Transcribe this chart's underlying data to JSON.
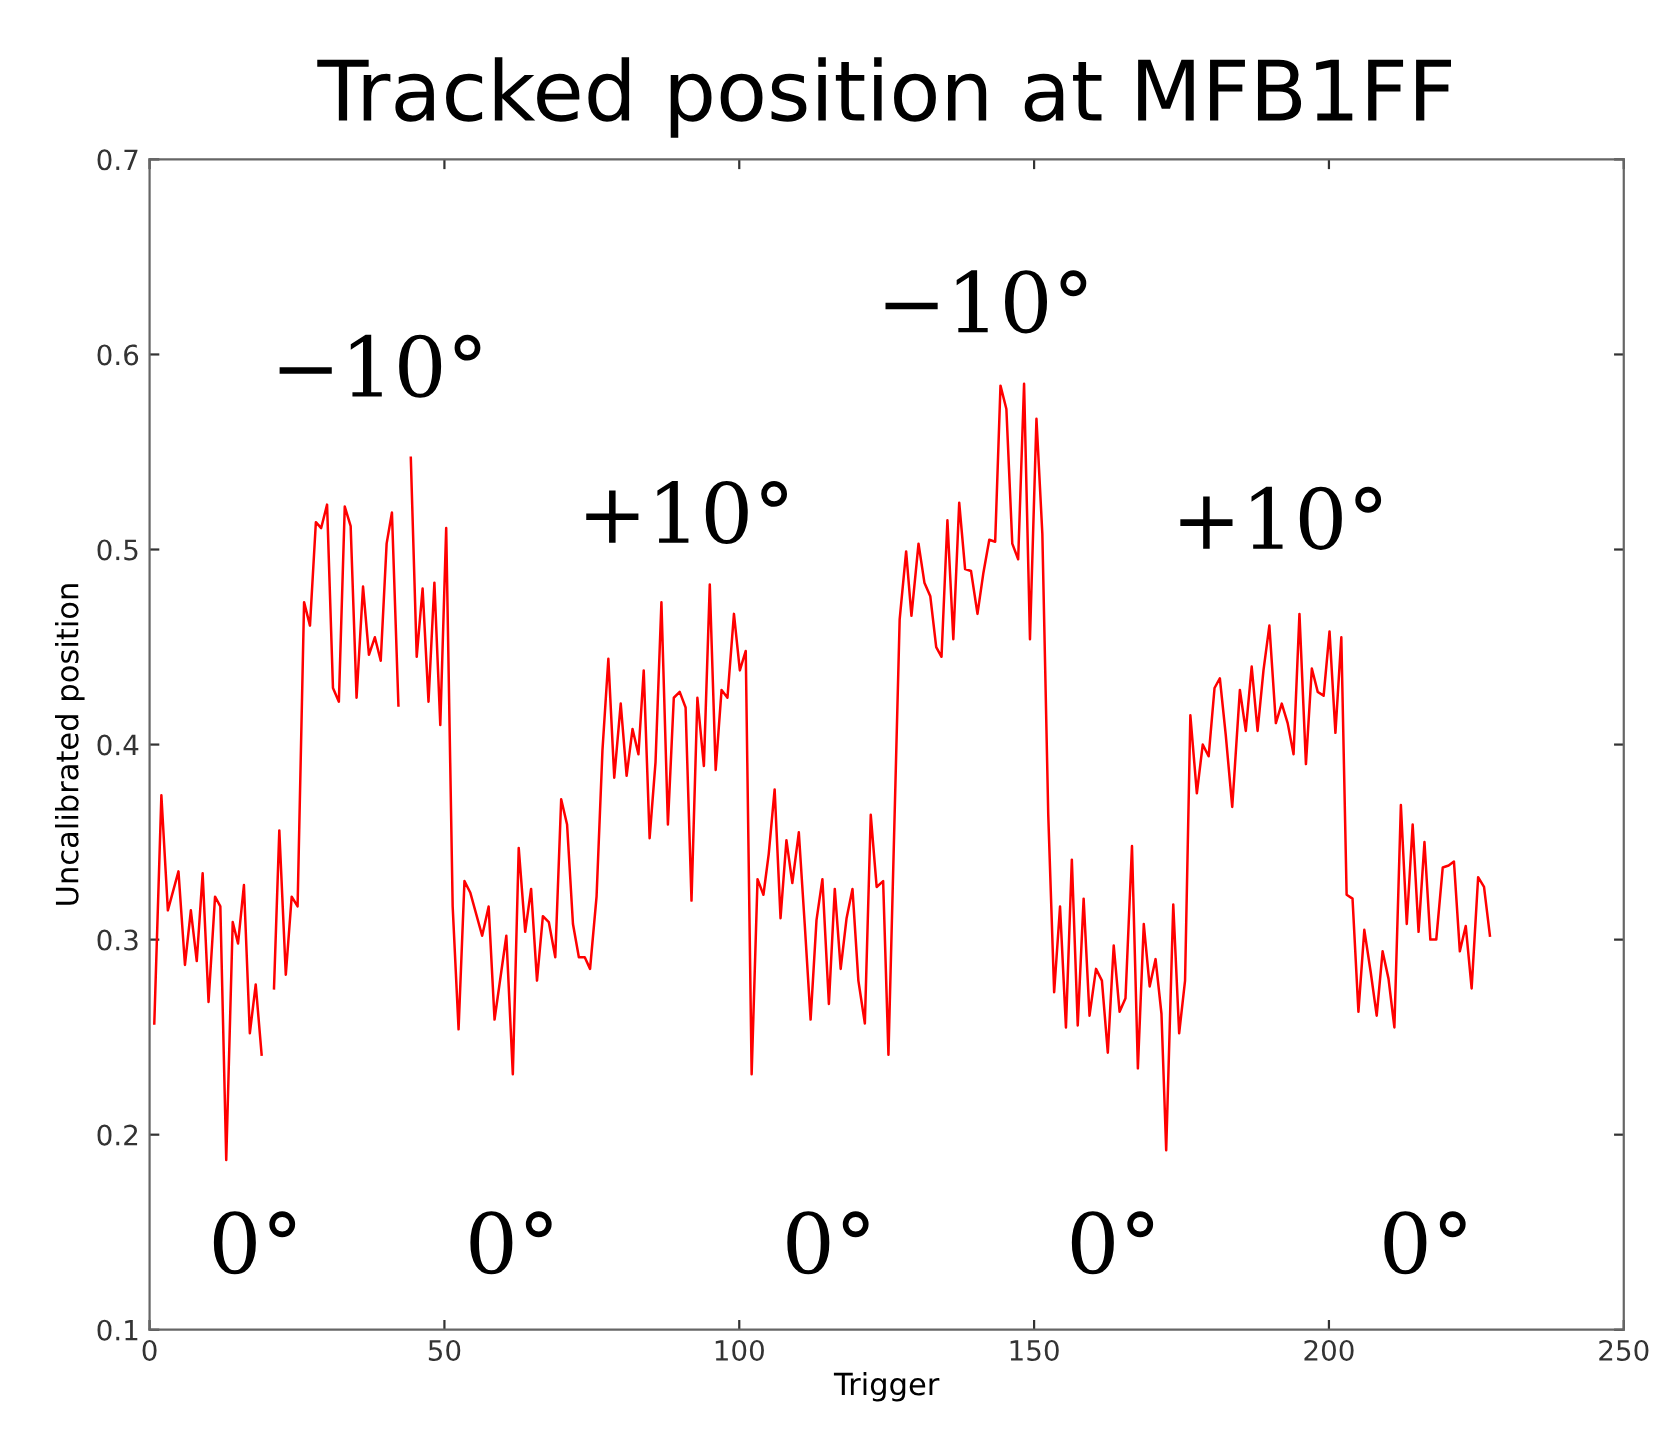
{
  "chart_data": {
    "type": "line",
    "title": "Tracked position at MFB1FF",
    "xlabel": "Trigger",
    "ylabel": "Uncalibrated position",
    "xlim": [
      0,
      250
    ],
    "xticks": [
      0,
      50,
      100,
      150,
      200,
      250
    ],
    "ylim": [
      0.1,
      0.7
    ],
    "yticks": [
      0.1,
      0.2,
      0.3,
      0.4,
      0.5,
      0.6,
      0.7
    ],
    "grid": false,
    "line_style": "solid",
    "marker": "none",
    "series": [
      {
        "color": "#ff0000",
        "x": [
          0.8,
          2.0,
          3.1,
          4.9,
          6.0,
          7.0,
          8.0,
          9.0,
          10.0,
          11.1,
          12.0,
          13.0,
          14.1,
          15.0,
          16.0,
          17.0,
          18.0,
          19.0,
          20.0,
          21.1,
          22.0,
          23.1,
          24.1,
          25.1,
          26.2,
          27.2,
          28.2,
          29.1,
          30.1,
          31.1,
          32.1,
          33.1,
          34.1,
          35.1,
          36.2,
          37.2,
          38.2,
          39.2,
          40.2,
          41.1,
          42.2,
          43.3,
          44.3,
          45.3,
          46.3,
          47.3,
          48.3,
          49.3,
          50.3,
          51.4,
          52.4,
          53.4,
          54.4,
          56.4,
          57.5,
          58.5,
          60.5,
          61.6,
          62.6,
          63.7,
          64.7,
          65.7,
          66.7,
          67.7,
          68.8,
          69.8,
          70.8,
          71.8,
          72.8,
          73.8,
          74.7,
          75.8,
          76.8,
          77.8,
          78.8,
          79.9,
          80.9,
          81.9,
          82.9,
          83.8,
          84.8,
          85.8,
          86.8,
          87.9,
          88.9,
          89.9,
          90.9,
          91.9,
          92.9,
          94.0,
          95.0,
          96.0,
          97.0,
          98.0,
          99.1,
          100.1,
          101.1,
          102.1,
          103.1,
          104.1,
          105.0,
          106.0,
          107.0,
          108.0,
          109.0,
          110.1,
          111.1,
          112.1,
          113.1,
          114.1,
          115.2,
          116.2,
          117.2,
          118.2,
          119.2,
          120.2,
          121.3,
          122.3,
          123.3,
          124.4,
          125.3,
          127.2,
          128.3,
          129.2,
          130.4,
          131.4,
          132.4,
          133.4,
          134.3,
          135.3,
          136.3,
          137.3,
          138.3,
          139.3,
          140.4,
          141.4,
          142.4,
          143.4,
          144.3,
          145.3,
          146.3,
          147.3,
          148.3,
          149.3,
          150.4,
          151.4,
          152.4,
          153.4,
          154.4,
          155.4,
          156.4,
          157.4,
          158.4,
          159.4,
          160.5,
          161.5,
          162.5,
          163.5,
          164.5,
          165.5,
          166.6,
          167.6,
          168.6,
          169.6,
          170.6,
          171.6,
          172.4,
          173.6,
          174.6,
          175.6,
          176.5,
          177.6,
          178.6,
          179.6,
          180.6,
          181.5,
          182.5,
          183.6,
          184.9,
          185.9,
          186.9,
          187.9,
          188.9,
          189.9,
          191.0,
          192.0,
          193.0,
          194.0,
          195.0,
          196.1,
          197.1,
          198.1,
          199.1,
          200.1,
          201.1,
          202.1,
          203.0,
          204.0,
          205.0,
          206.0,
          207.1,
          208.1,
          209.1,
          210.1,
          211.1,
          212.2,
          213.2,
          214.2,
          215.2,
          216.2,
          217.2,
          218.2,
          219.3,
          220.3,
          221.2,
          222.2,
          223.2,
          224.2,
          225.3,
          226.3,
          227.3
        ],
        "values": [
          0.257,
          0.374,
          0.315,
          0.335,
          0.287,
          0.315,
          0.289,
          0.334,
          0.268,
          0.322,
          0.317,
          0.187,
          0.309,
          0.298,
          0.328,
          0.252,
          0.277,
          0.241,
          null,
          0.275,
          0.356,
          0.282,
          0.322,
          0.317,
          0.473,
          0.461,
          0.514,
          0.511,
          0.523,
          0.429,
          0.422,
          0.522,
          0.512,
          0.424,
          0.481,
          0.446,
          0.455,
          0.443,
          0.503,
          0.519,
          0.42,
          null,
          0.547,
          0.445,
          0.48,
          0.422,
          0.483,
          0.41,
          0.511,
          0.317,
          0.254,
          0.33,
          0.324,
          0.302,
          0.317,
          0.259,
          0.302,
          0.231,
          0.347,
          0.304,
          0.326,
          0.279,
          0.312,
          0.309,
          0.291,
          0.372,
          0.359,
          0.308,
          0.291,
          0.291,
          0.285,
          0.322,
          0.397,
          0.444,
          0.383,
          0.421,
          0.384,
          0.408,
          0.395,
          0.438,
          0.352,
          0.391,
          0.473,
          0.359,
          0.424,
          0.427,
          0.419,
          0.32,
          0.424,
          0.389,
          0.482,
          0.387,
          0.428,
          0.424,
          0.467,
          0.438,
          0.448,
          0.231,
          0.331,
          0.323,
          0.344,
          0.377,
          0.311,
          0.351,
          0.329,
          0.355,
          0.308,
          0.259,
          0.31,
          0.331,
          0.267,
          0.326,
          0.285,
          0.311,
          0.326,
          0.279,
          0.257,
          0.364,
          0.327,
          0.33,
          0.241,
          0.464,
          0.499,
          0.466,
          0.503,
          0.483,
          0.476,
          0.45,
          0.445,
          0.515,
          0.454,
          0.524,
          0.49,
          0.489,
          0.467,
          0.488,
          0.505,
          0.504,
          0.584,
          0.572,
          0.503,
          0.495,
          0.585,
          0.454,
          0.567,
          0.508,
          0.364,
          0.273,
          0.317,
          0.255,
          0.341,
          0.256,
          0.321,
          0.261,
          0.285,
          0.279,
          0.242,
          0.297,
          0.263,
          0.27,
          0.348,
          0.234,
          0.308,
          0.276,
          0.29,
          0.262,
          0.192,
          0.318,
          0.252,
          0.279,
          0.415,
          0.375,
          0.4,
          0.394,
          0.429,
          0.434,
          0.405,
          0.368,
          0.428,
          0.407,
          0.44,
          0.407,
          0.438,
          0.461,
          0.411,
          0.421,
          0.411,
          0.395,
          0.467,
          0.39,
          0.439,
          0.427,
          0.425,
          0.458,
          0.406,
          0.455,
          0.323,
          0.321,
          0.263,
          0.305,
          0.283,
          0.261,
          0.294,
          0.28,
          0.255,
          0.369,
          0.308,
          0.359,
          0.304,
          0.35,
          0.3,
          0.3,
          0.337,
          0.338,
          0.34,
          0.294,
          0.307,
          0.275,
          0.332,
          0.327,
          0.302
        ]
      }
    ],
    "annotations": [
      "−10°",
      "+10°",
      "−10°",
      "+10°",
      "0°",
      "0°",
      "0°",
      "0°",
      "0°"
    ]
  }
}
